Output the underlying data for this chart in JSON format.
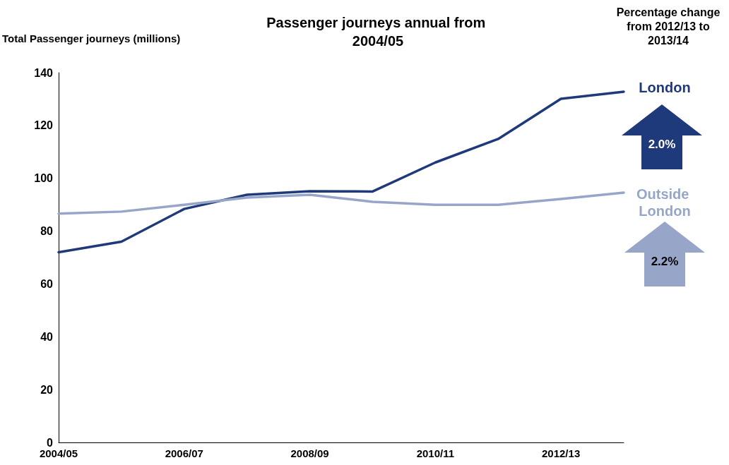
{
  "chart_data": {
    "type": "line",
    "title": "Passenger journeys annual from 2004/05",
    "ylabel": "Total Passenger journeys (millions)",
    "annotations": [
      "Percentage change from 2012/13 to 2013/14",
      "2.0%",
      "2.2%"
    ],
    "categories": [
      "2004/05",
      null,
      "2006/07",
      null,
      "2008/09",
      null,
      "2010/11",
      null,
      "2012/13",
      null
    ],
    "series": [
      {
        "name": "London",
        "color": "#1f3a7a",
        "values": [
          72,
          76,
          88.4,
          93.8,
          95.1,
          95,
          106,
          114.9,
          130.1,
          132.8
        ]
      },
      {
        "name": "Outside London",
        "color": "#97a6c8",
        "values": [
          86.6,
          87.4,
          90,
          92.7,
          93.8,
          91.1,
          90,
          90,
          92.2,
          94.6
        ]
      }
    ],
    "ylim": [
      0,
      140
    ],
    "yticks": [
      0,
      20,
      40,
      60,
      80,
      100,
      120,
      140
    ],
    "grid": false,
    "legend": false,
    "marker": "none",
    "line_style": "solid"
  }
}
